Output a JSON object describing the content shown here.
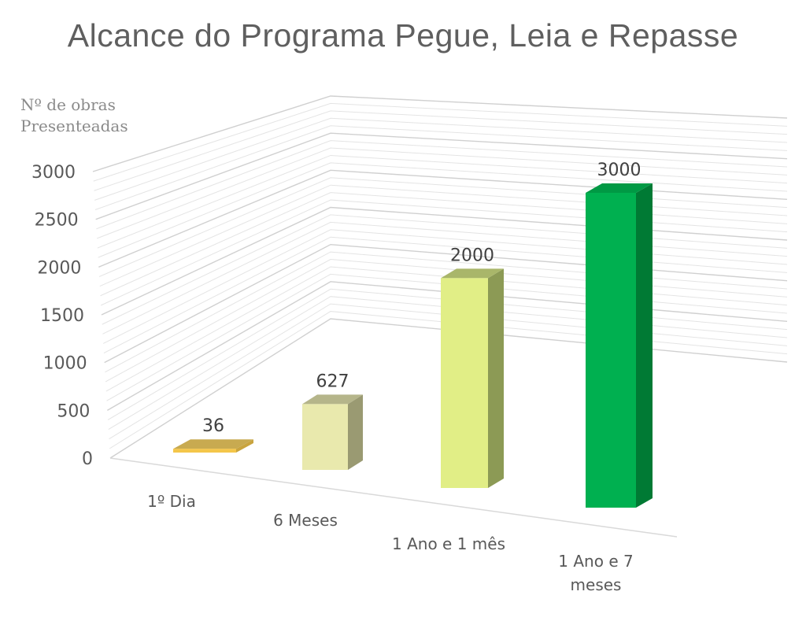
{
  "chart_data": {
    "type": "bar",
    "title": "Alcance do Programa Pegue, Leia e Repasse",
    "ylabel_lines": [
      "Nº de obras",
      "Presenteadas"
    ],
    "xlabel": "",
    "categories": [
      [
        "1º Dia"
      ],
      [
        "6 Meses"
      ],
      [
        "1 Ano e 1 mês"
      ],
      [
        "1 Ano e 7",
        "meses"
      ]
    ],
    "values": [
      36,
      627,
      2000,
      3000
    ],
    "data_labels": [
      "36",
      "627",
      "2000",
      "3000"
    ],
    "yticks": [
      "0",
      "500",
      "1000",
      "1500",
      "2000",
      "2500",
      "3000"
    ],
    "ylim": [
      0,
      3000
    ],
    "grid": true,
    "style": "3d-column",
    "colors": [
      {
        "front": "#f4c64a",
        "side": "#c9a43e",
        "top": "#c8aa50"
      },
      {
        "front": "#e9e9ad",
        "side": "#9a9a72",
        "top": "#b5b58a"
      },
      {
        "front": "#e1ee86",
        "side": "#8c9a55",
        "top": "#a9b66a"
      },
      {
        "front": "#00b050",
        "side": "#007a34",
        "top": "#009944"
      }
    ]
  }
}
